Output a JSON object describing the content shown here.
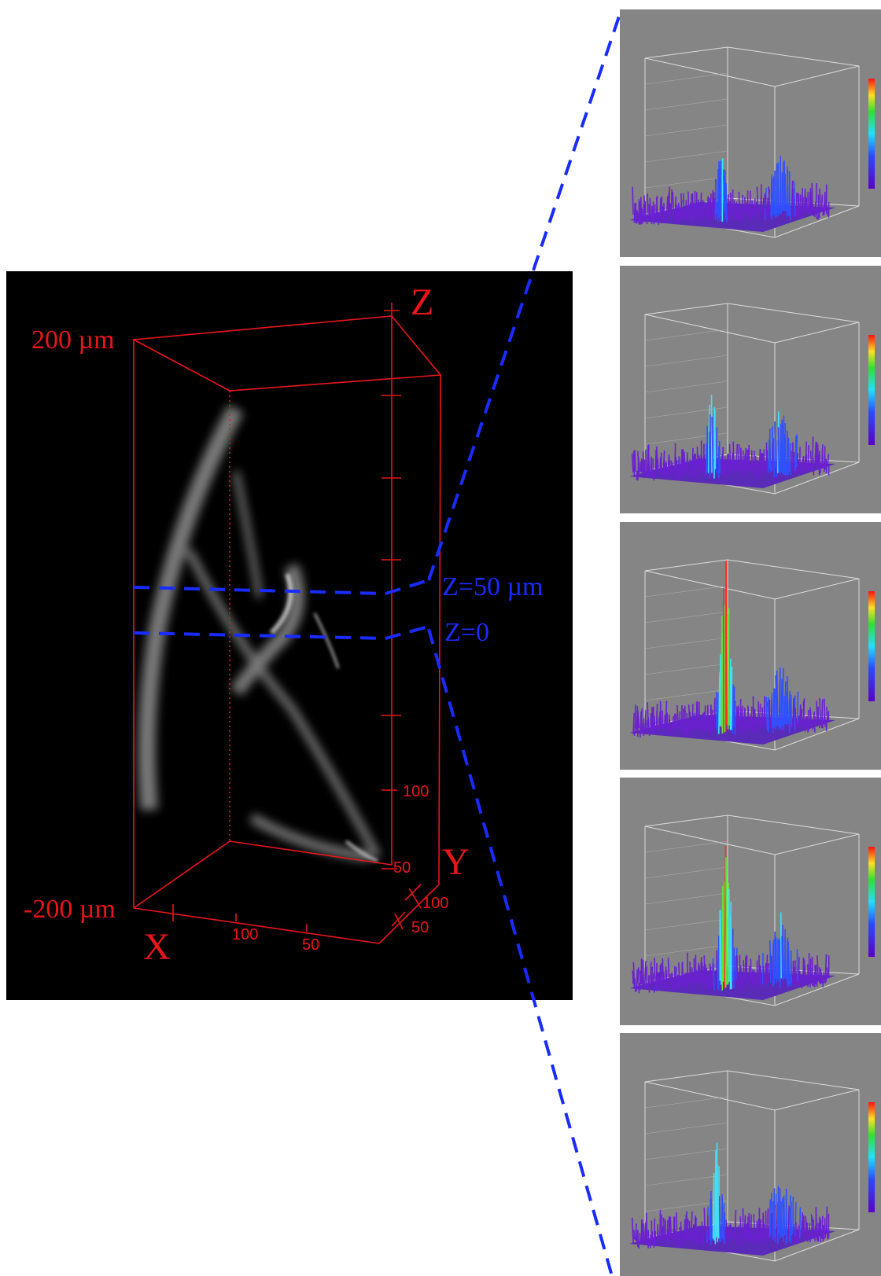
{
  "volume": {
    "labels": {
      "top": "200 µm",
      "bottom": "-200 µm",
      "z_axis": "Z",
      "x_axis": "X",
      "y_axis": "Y",
      "slice_upper": "Z=50 µm",
      "slice_lower": "Z=0"
    },
    "x_ticks": [
      "100",
      "50"
    ],
    "y_ticks": [
      "100",
      "50"
    ],
    "z_ticks": [
      "100",
      "50"
    ]
  }
}
